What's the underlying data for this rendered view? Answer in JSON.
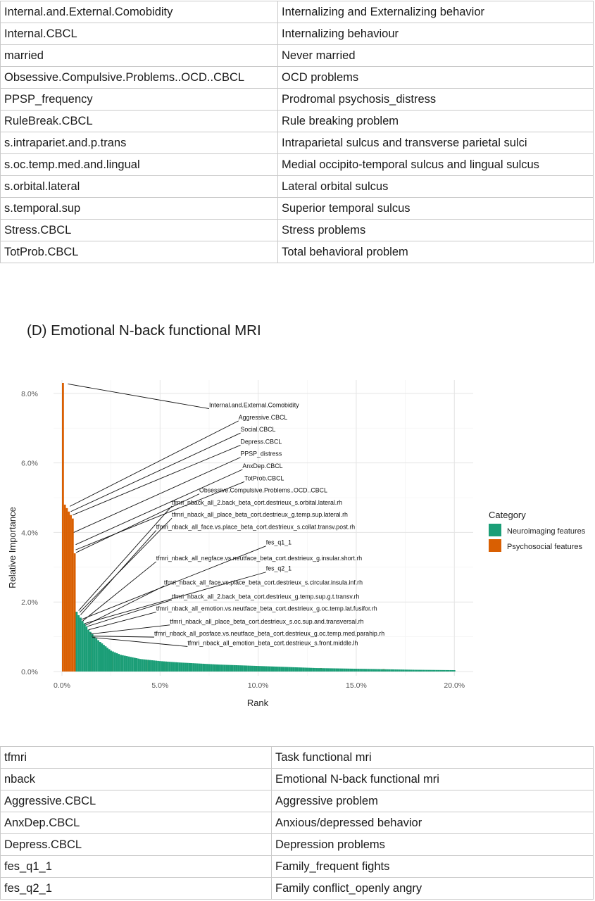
{
  "top_table": {
    "rows": [
      [
        "Internal.and.External.Comobidity",
        "Internalizing and Externalizing behavior"
      ],
      [
        "Internal.CBCL",
        "Internalizing behaviour"
      ],
      [
        "married",
        "Never married"
      ],
      [
        "Obsessive.Compulsive.Problems..OCD..CBCL",
        "OCD problems"
      ],
      [
        "PPSP_frequency",
        "Prodromal psychosis_distress"
      ],
      [
        "RuleBreak.CBCL",
        "Rule breaking problem"
      ],
      [
        "s.intrapariet.and.p.trans",
        "Intraparietal sulcus and transverse parietal sulci"
      ],
      [
        "s.oc.temp.med.and.lingual",
        "Medial occipito-temporal sulcus and lingual sulcus"
      ],
      [
        "s.orbital.lateral",
        "Lateral orbital sulcus"
      ],
      [
        "s.temporal.sup",
        "Superior temporal sulcus"
      ],
      [
        "Stress.CBCL",
        "Stress problems"
      ],
      [
        "TotProb.CBCL",
        "Total behavioral problem"
      ]
    ]
  },
  "section_title": "(D) Emotional N-back functional MRI",
  "chart_data": {
    "type": "bar",
    "xlabel": "Rank",
    "ylabel": "Relative Importance",
    "xlim": [
      0,
      20
    ],
    "ylim": [
      0,
      8.3
    ],
    "x_ticks": [
      "0.0%",
      "5.0%",
      "10.0%",
      "15.0%",
      "20.0%"
    ],
    "y_ticks": [
      "0.0%",
      "2.0%",
      "4.0%",
      "6.0%",
      "8.0%"
    ],
    "grid": true,
    "legend": {
      "title": "Category",
      "position": "right",
      "entries": [
        {
          "name": "Neuroimaging features",
          "color": "#1b9e77"
        },
        {
          "name": "Psychosocial features",
          "color": "#d95f02"
        }
      ]
    },
    "series": [
      {
        "name": "Psychosocial features",
        "color": "#d95f02",
        "points": [
          [
            0.05,
            8.3
          ],
          [
            0.15,
            4.8
          ],
          [
            0.25,
            4.7
          ],
          [
            0.35,
            4.6
          ],
          [
            0.45,
            4.5
          ],
          [
            0.55,
            4.4
          ],
          [
            0.65,
            3.4
          ],
          [
            1.45,
            1.0
          ],
          [
            2.0,
            0.72
          ],
          [
            2.55,
            0.55
          ],
          [
            3.05,
            0.45
          ],
          [
            4.3,
            0.33
          ],
          [
            5.3,
            0.28
          ],
          [
            7.8,
            0.2
          ],
          [
            9.9,
            0.16
          ],
          [
            13.2,
            0.1
          ],
          [
            16.4,
            0.07
          ],
          [
            19.4,
            0.04
          ]
        ]
      },
      {
        "name": "Neuroimaging features",
        "color": "#1b9e77",
        "points": [
          [
            0.75,
            1.72
          ],
          [
            0.85,
            1.62
          ],
          [
            0.95,
            1.55
          ],
          [
            1.05,
            1.45
          ],
          [
            1.15,
            1.38
          ],
          [
            1.25,
            1.3
          ],
          [
            1.35,
            1.2
          ],
          [
            1.55,
            1.08
          ],
          [
            1.65,
            1.0
          ],
          [
            1.75,
            0.95
          ],
          [
            1.85,
            0.9
          ],
          [
            1.95,
            0.85
          ],
          [
            2.5,
            0.6
          ],
          [
            3,
            0.48
          ],
          [
            4,
            0.36
          ],
          [
            5,
            0.3
          ],
          [
            6,
            0.26
          ],
          [
            7,
            0.23
          ],
          [
            8,
            0.2
          ],
          [
            9,
            0.18
          ],
          [
            10,
            0.16
          ],
          [
            11,
            0.14
          ],
          [
            12,
            0.12
          ],
          [
            13,
            0.1
          ],
          [
            14,
            0.09
          ],
          [
            15,
            0.08
          ],
          [
            16,
            0.07
          ],
          [
            17,
            0.06
          ],
          [
            18,
            0.05
          ],
          [
            19,
            0.045
          ],
          [
            20,
            0.04
          ]
        ]
      }
    ],
    "annotations": [
      {
        "text": "Internal.and.External.Comobidity",
        "x": 0.3,
        "y": 8.27,
        "label_x": 7.5,
        "label_y": 7.6
      },
      {
        "text": "Aggressive.CBCL",
        "x": 0.4,
        "y": 4.75,
        "label_x": 9.0,
        "label_y": 7.25
      },
      {
        "text": "Social.CBCL",
        "x": 0.45,
        "y": 4.6,
        "label_x": 9.1,
        "label_y": 6.9
      },
      {
        "text": "Depress.CBCL",
        "x": 0.55,
        "y": 4.5,
        "label_x": 9.1,
        "label_y": 6.55
      },
      {
        "text": "PPSP_distress",
        "x": 0.6,
        "y": 4.0,
        "label_x": 9.1,
        "label_y": 6.2
      },
      {
        "text": "AnxDep.CBCL",
        "x": 0.7,
        "y": 3.65,
        "label_x": 9.2,
        "label_y": 5.85
      },
      {
        "text": "TotProb.CBCL",
        "x": 0.7,
        "y": 3.5,
        "label_x": 9.3,
        "label_y": 5.5
      },
      {
        "text": "Obsessive.Compulsive.Problems..OCD..CBCL",
        "x": 0.72,
        "y": 3.42,
        "label_x": 7.0,
        "label_y": 5.15
      },
      {
        "text": "tfmri_nback_all_2.back_beta_cort.destrieux_s.orbital.lateral.rh",
        "x": 0.85,
        "y": 1.75,
        "label_x": 5.6,
        "label_y": 4.8
      },
      {
        "text": "tfmri_nback_all_place_beta_cort.destrieux_g.temp.sup.lateral.rh",
        "x": 0.9,
        "y": 1.7,
        "label_x": 5.6,
        "label_y": 4.45
      },
      {
        "text": "tfmri_nback_all_face.vs.place_beta_cort.destrieux_s.collat.transv.post.rh",
        "x": 0.95,
        "y": 1.63,
        "label_x": 4.8,
        "label_y": 4.1
      },
      {
        "text": "fes_q1_1",
        "x": 1.0,
        "y": 1.5,
        "label_x": 10.4,
        "label_y": 3.65
      },
      {
        "text": "tfmri_nback_all_negface.vs.neutface_beta_cort.destrieux_g.insular.short.rh",
        "x": 1.05,
        "y": 1.45,
        "label_x": 4.8,
        "label_y": 3.2
      },
      {
        "text": "fes_q2_1",
        "x": 1.15,
        "y": 1.38,
        "label_x": 10.4,
        "label_y": 2.9
      },
      {
        "text": "tfmri_nback_all_face.vs.place_beta_cort.destrieux_s.circular.insula.inf.rh",
        "x": 1.2,
        "y": 1.33,
        "label_x": 5.2,
        "label_y": 2.5
      },
      {
        "text": "tfmri_nback_all_2.back_beta_cort.destrieux_g.temp.sup.g.t.transv.rh",
        "x": 1.3,
        "y": 1.3,
        "label_x": 5.6,
        "label_y": 2.1
      },
      {
        "text": "tfmri_nback_all_emotion.vs.neutface_beta_cort.destrieux_g.oc.temp.lat.fusifor.rh",
        "x": 1.35,
        "y": 1.2,
        "label_x": 4.8,
        "label_y": 1.75
      },
      {
        "text": "tfmri_nback_all_place_beta_cort.destrieux_s.oc.sup.and.transversal.rh",
        "x": 1.45,
        "y": 1.08,
        "label_x": 5.5,
        "label_y": 1.38
      },
      {
        "text": "tfmri_nback_all_posface.vs.neutface_beta_cort.destrieux_g.oc.temp.med.parahip.rh",
        "x": 1.5,
        "y": 1.02,
        "label_x": 4.7,
        "label_y": 1.03
      },
      {
        "text": "tfmri_nback_all_emotion_beta_cort.destrieux_s.front.middle.lh",
        "x": 1.55,
        "y": 0.98,
        "label_x": 6.4,
        "label_y": 0.76
      }
    ]
  },
  "bottom_table": {
    "rows": [
      [
        "tfmri",
        "Task functional mri"
      ],
      [
        "nback",
        "Emotional N-back functional mri"
      ],
      [
        "Aggressive.CBCL",
        "Aggressive problem"
      ],
      [
        "AnxDep.CBCL",
        "Anxious/depressed behavior"
      ],
      [
        "Depress.CBCL",
        "Depression problems"
      ],
      [
        "fes_q1_1",
        "Family_frequent fights"
      ],
      [
        "fes_q2_1",
        "Family conflict_openly angry"
      ]
    ]
  }
}
